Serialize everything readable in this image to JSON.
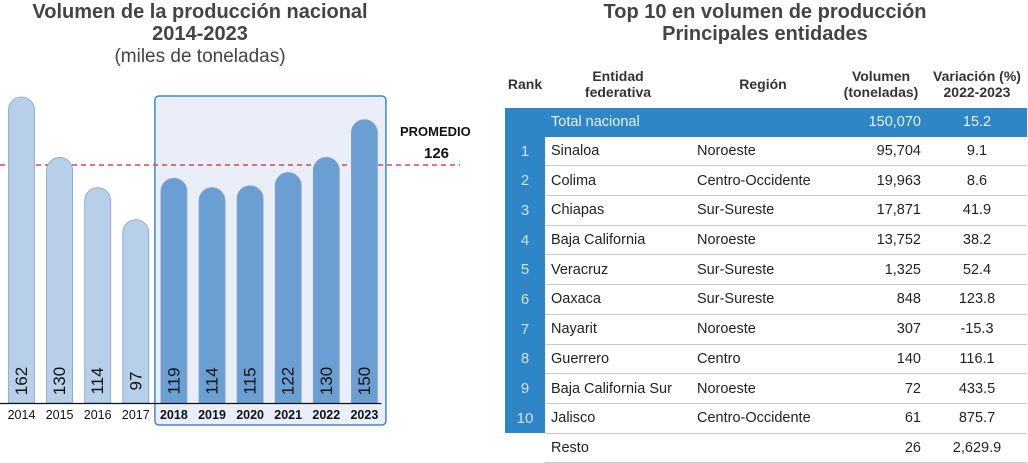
{
  "left": {
    "title_line1": "Volumen de la producción nacional",
    "title_line2": "2014-2023",
    "subtitle": "(miles de toneladas)",
    "average_label": "PROMEDIO",
    "average_value": "126"
  },
  "chart_data": {
    "type": "bar",
    "title": "Volumen de la producción nacional 2014-2023",
    "ylabel": "(miles de toneladas)",
    "categories": [
      "2014",
      "2015",
      "2016",
      "2017",
      "2018",
      "2019",
      "2020",
      "2021",
      "2022",
      "2023"
    ],
    "values": [
      162,
      130,
      114,
      97,
      119,
      114,
      115,
      122,
      130,
      150
    ],
    "highlight_from": "2018",
    "average": 126,
    "colors": {
      "light": "#b8cfea",
      "dark": "#6b9ed2",
      "highlight_bg": "#e9eef8",
      "highlight_border": "#3b8ccc",
      "average_line": "#e0444e"
    }
  },
  "right": {
    "title_line1": "Top 10 en volumen de producción",
    "title_line2": "Principales entidades",
    "headers": {
      "rank": "Rank",
      "entity_1": "Entidad",
      "entity_2": "federativa",
      "region": "Región",
      "volume_1": "Volumen",
      "volume_2": "(toneladas)",
      "variation_1": "Variación (%)",
      "variation_2": "2022-2023"
    },
    "total": {
      "rank": "",
      "entity": "Total nacional",
      "region": "",
      "volume": "150,070",
      "variation": "15.2"
    },
    "rows": [
      {
        "rank": "1",
        "entity": "Sinaloa",
        "region": "Noroeste",
        "volume": "95,704",
        "variation": "9.1"
      },
      {
        "rank": "2",
        "entity": "Colima",
        "region": "Centro-Occidente",
        "volume": "19,963",
        "variation": "8.6"
      },
      {
        "rank": "3",
        "entity": "Chiapas",
        "region": "Sur-Sureste",
        "volume": "17,871",
        "variation": "41.9"
      },
      {
        "rank": "4",
        "entity": "Baja California",
        "region": "Noroeste",
        "volume": "13,752",
        "variation": "38.2"
      },
      {
        "rank": "5",
        "entity": "Veracruz",
        "region": "Sur-Sureste",
        "volume": "1,325",
        "variation": "52.4"
      },
      {
        "rank": "6",
        "entity": "Oaxaca",
        "region": "Sur-Sureste",
        "volume": "848",
        "variation": "123.8"
      },
      {
        "rank": "7",
        "entity": "Nayarit",
        "region": "Noroeste",
        "volume": "307",
        "variation": "-15.3"
      },
      {
        "rank": "8",
        "entity": "Guerrero",
        "region": "Centro",
        "volume": "140",
        "variation": "116.1"
      },
      {
        "rank": "9",
        "entity": "Baja California Sur",
        "region": "Noroeste",
        "volume": "72",
        "variation": "433.5"
      },
      {
        "rank": "10",
        "entity": "Jalisco",
        "region": "Centro-Occidente",
        "volume": "61",
        "variation": "875.7"
      }
    ],
    "resto": {
      "rank": "",
      "entity": "Resto",
      "region": "",
      "volume": "26",
      "variation": "2,629.9"
    }
  }
}
